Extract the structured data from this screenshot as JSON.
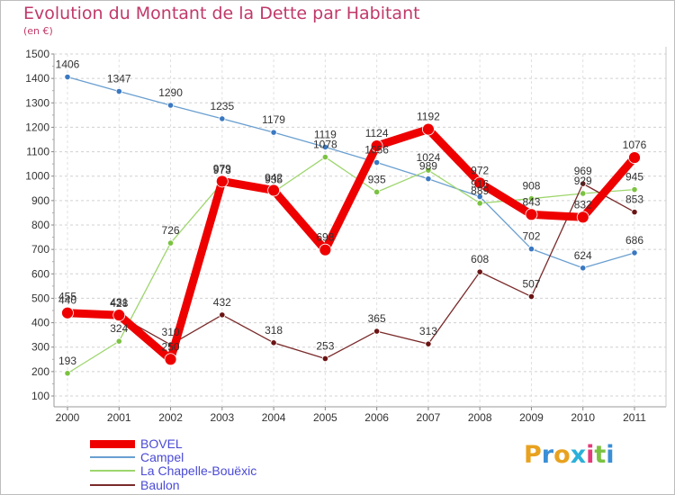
{
  "title": "Evolution du Montant de la Dette par Habitant",
  "subtitle": "(en €)",
  "brand": {
    "letters": [
      "P",
      "r",
      "o",
      "x",
      "i",
      "t",
      "i"
    ],
    "colors": [
      "#e8a21f",
      "#3a8fd6",
      "#e8a21f",
      "#2bb0d9",
      "#e43b7a",
      "#7cc242",
      "#3a8fd6"
    ]
  },
  "chart_data": {
    "type": "line",
    "title": "Evolution du Montant de la Dette par Habitant",
    "subtitle": "(en €)",
    "xlabel": "",
    "ylabel": "",
    "x": [
      "2000",
      "2001",
      "2002",
      "2003",
      "2004",
      "2005",
      "2006",
      "2007",
      "2008",
      "2009",
      "2010",
      "2011"
    ],
    "ylim": [
      100,
      1500
    ],
    "yticks": [
      100,
      200,
      300,
      400,
      500,
      600,
      700,
      800,
      900,
      1000,
      1100,
      1200,
      1300,
      1400,
      1500
    ],
    "grid": "horizontal dashed",
    "legend": "bottom-left",
    "series": [
      {
        "name": "Campel",
        "color": "#6a9fd0",
        "marker": "#3a78c2",
        "width": 1.3,
        "values": [
          1406,
          1347,
          1290,
          1235,
          1179,
          1119,
          1056,
          989,
          916,
          702,
          624,
          686
        ],
        "labels": [
          "1406",
          "1347",
          "1290",
          "1235",
          "1179",
          "1119",
          "1056",
          "989",
          "916",
          "702",
          "624",
          "686"
        ]
      },
      {
        "name": "La Chapelle-Bouëxic",
        "color": "#9ed66e",
        "marker": "#7cc242",
        "width": 1.3,
        "values": [
          193,
          324,
          726,
          973,
          935,
          1078,
          935,
          1024,
          889,
          908,
          929,
          945
        ],
        "labels": [
          "193",
          "324",
          "726",
          "973",
          "935",
          "1078",
          "935",
          "1024",
          "889",
          "908",
          "929",
          "945"
        ]
      },
      {
        "name": "Baulon",
        "color": "#7a2a2a",
        "marker": "#6b1414",
        "width": 1.3,
        "values": [
          455,
          428,
          310,
          432,
          318,
          253,
          365,
          313,
          608,
          507,
          969,
          853
        ],
        "labels": [
          "455",
          "428",
          "310",
          "432",
          "318",
          "253",
          "365",
          "313",
          "608",
          "507",
          "969",
          "853"
        ]
      },
      {
        "name": "BOVEL",
        "color": "#ee0000",
        "marker": "#ee0000",
        "width": 9,
        "values": [
          440,
          431,
          250,
          979,
          942,
          698,
          1124,
          1192,
          972,
          843,
          832,
          1076
        ],
        "labels": [
          "440",
          "431",
          "250",
          "979",
          "942",
          "698",
          "1124",
          "1192",
          "972",
          "843",
          "832",
          "1076"
        ]
      }
    ]
  },
  "legend": [
    {
      "name": "BOVEL",
      "color": "#ee0000",
      "width": 9
    },
    {
      "name": "Campel",
      "color": "#6a9fd0",
      "width": 2
    },
    {
      "name": "La Chapelle-Bouëxic",
      "color": "#9ed66e",
      "width": 2
    },
    {
      "name": "Baulon",
      "color": "#7a2a2a",
      "width": 2
    }
  ]
}
